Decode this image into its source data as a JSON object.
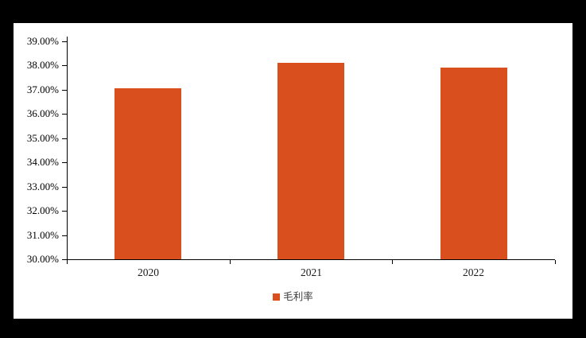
{
  "chart_data": {
    "type": "bar",
    "title": "",
    "categories": [
      "2020",
      "2021",
      "2022"
    ],
    "series": [
      {
        "name": "毛利率",
        "values": [
          37.05,
          38.1,
          37.92
        ]
      }
    ],
    "value_unit": "percent",
    "ylim": [
      30,
      39
    ],
    "ytick_step": 1,
    "ytick_labels": [
      "39.00%",
      "38.00%",
      "37.00%",
      "36.00%",
      "35.00%",
      "34.00%",
      "33.00%",
      "32.00%",
      "31.00%",
      "30.00%"
    ],
    "xtick_labels": [
      "2020",
      "2021",
      "2022"
    ],
    "grid": false,
    "legend_position": "bottom-center",
    "bar_color": "#D94F1E"
  },
  "legend": {
    "items": [
      {
        "label": "毛利率",
        "swatch_color": "#D94F1E"
      }
    ]
  },
  "colors": {
    "frame_background": "#000000",
    "chart_background": "#FFFFFF",
    "axis_line": "#000000",
    "axis_text": "#000000",
    "legend_text": "#3F3F3F",
    "bar": "#D94F1E"
  }
}
